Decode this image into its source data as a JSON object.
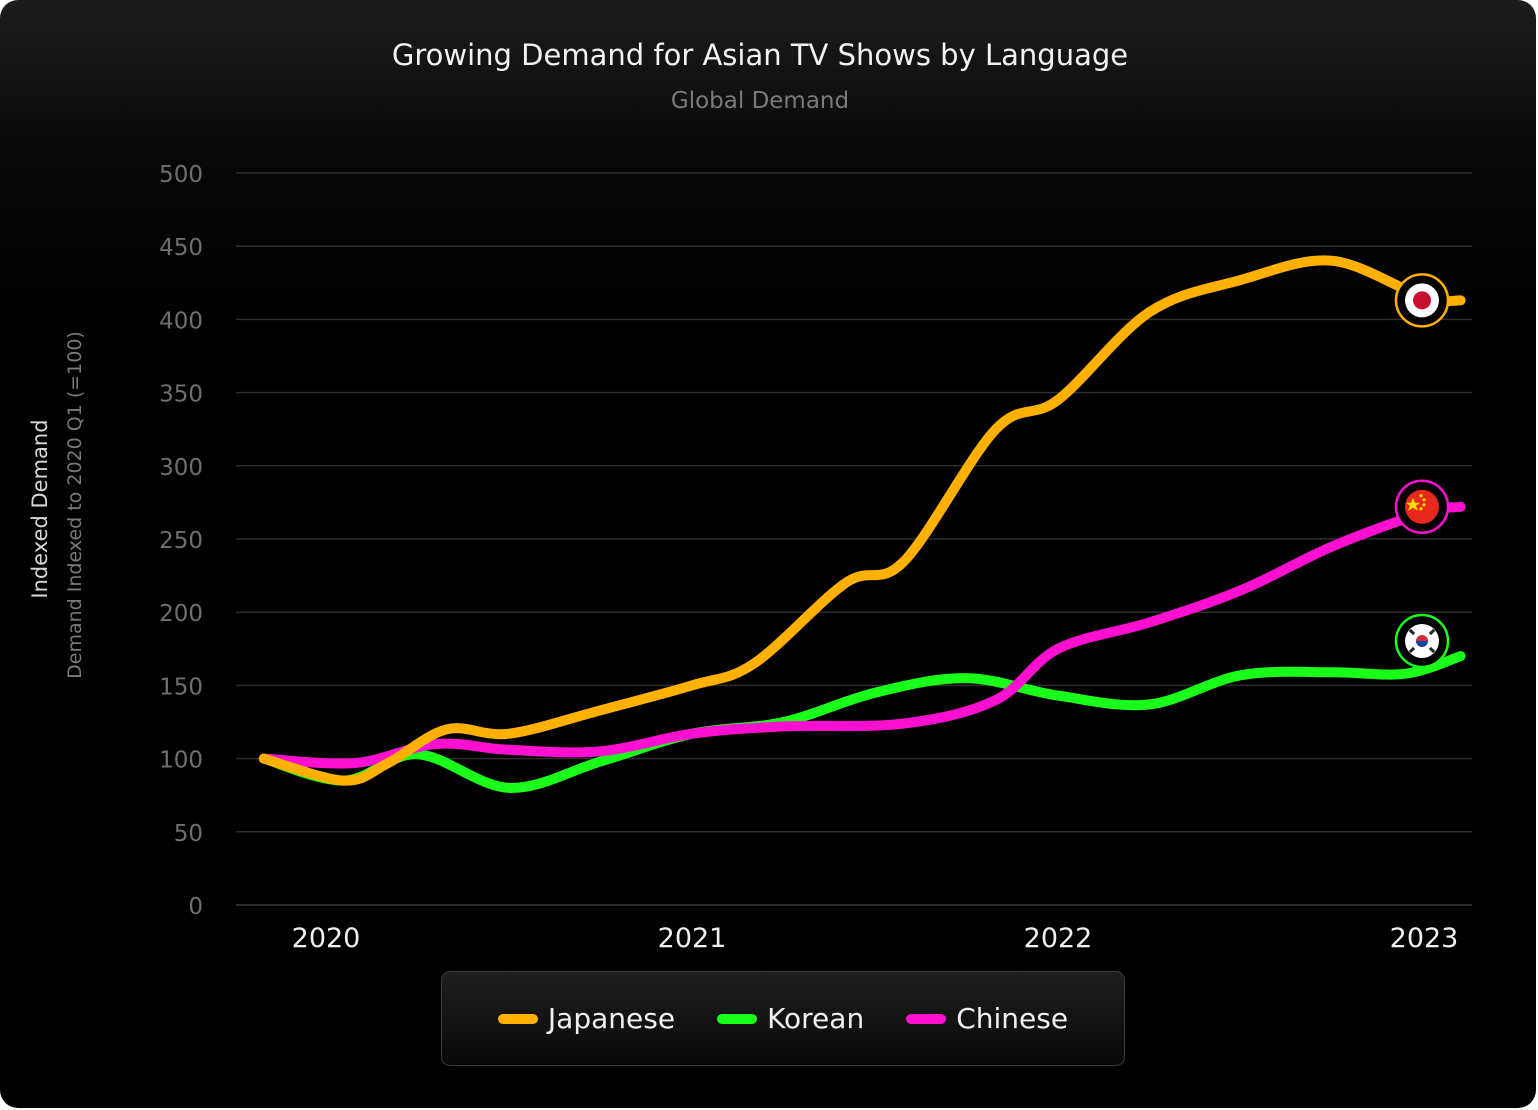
{
  "chart_data": {
    "type": "line",
    "title": "Growing Demand for Asian TV Shows by Language",
    "subtitle": "Global Demand",
    "ylabel": "Indexed Demand",
    "ylabel_secondary": "Demand Indexed to  2020 Q1 (=100)",
    "xlabel": "",
    "ylim": [
      0,
      500
    ],
    "yticks": [
      0,
      50,
      100,
      150,
      200,
      250,
      300,
      350,
      400,
      450,
      500
    ],
    "xticks": [
      "2020",
      "2021",
      "2022",
      "2023"
    ],
    "grid": true,
    "legend_position": "bottom",
    "series": [
      {
        "name": "Japanese",
        "color": "#ffb000",
        "end_icon": "japan-flag-icon",
        "points": [
          {
            "x": 2019.83,
            "y": 100
          },
          {
            "x": 2020.05,
            "y": 85
          },
          {
            "x": 2020.17,
            "y": 97
          },
          {
            "x": 2020.33,
            "y": 120
          },
          {
            "x": 2020.5,
            "y": 117
          },
          {
            "x": 2020.75,
            "y": 133
          },
          {
            "x": 2021.0,
            "y": 150
          },
          {
            "x": 2021.17,
            "y": 165
          },
          {
            "x": 2021.42,
            "y": 220
          },
          {
            "x": 2021.58,
            "y": 235
          },
          {
            "x": 2021.83,
            "y": 325
          },
          {
            "x": 2022.0,
            "y": 345
          },
          {
            "x": 2022.25,
            "y": 405
          },
          {
            "x": 2022.5,
            "y": 427
          },
          {
            "x": 2022.75,
            "y": 440
          },
          {
            "x": 2023.0,
            "y": 415
          },
          {
            "x": 2023.1,
            "y": 413
          }
        ]
      },
      {
        "name": "Korean",
        "color": "#19ff19",
        "end_icon": "south-korea-flag-icon",
        "points": [
          {
            "x": 2019.83,
            "y": 100
          },
          {
            "x": 2020.05,
            "y": 85
          },
          {
            "x": 2020.25,
            "y": 103
          },
          {
            "x": 2020.5,
            "y": 80
          },
          {
            "x": 2020.75,
            "y": 98
          },
          {
            "x": 2021.0,
            "y": 117
          },
          {
            "x": 2021.25,
            "y": 125
          },
          {
            "x": 2021.5,
            "y": 145
          },
          {
            "x": 2021.75,
            "y": 155
          },
          {
            "x": 2022.0,
            "y": 143
          },
          {
            "x": 2022.25,
            "y": 137
          },
          {
            "x": 2022.5,
            "y": 157
          },
          {
            "x": 2022.75,
            "y": 159
          },
          {
            "x": 2022.95,
            "y": 158
          },
          {
            "x": 2023.1,
            "y": 170
          }
        ]
      },
      {
        "name": "Chinese",
        "color": "#ff10d0",
        "end_icon": "china-flag-icon",
        "points": [
          {
            "x": 2019.83,
            "y": 100
          },
          {
            "x": 2020.08,
            "y": 97
          },
          {
            "x": 2020.3,
            "y": 110
          },
          {
            "x": 2020.5,
            "y": 106
          },
          {
            "x": 2020.75,
            "y": 105
          },
          {
            "x": 2021.0,
            "y": 117
          },
          {
            "x": 2021.25,
            "y": 122
          },
          {
            "x": 2021.58,
            "y": 124
          },
          {
            "x": 2021.83,
            "y": 140
          },
          {
            "x": 2022.0,
            "y": 175
          },
          {
            "x": 2022.25,
            "y": 193
          },
          {
            "x": 2022.5,
            "y": 215
          },
          {
            "x": 2022.75,
            "y": 245
          },
          {
            "x": 2023.0,
            "y": 268
          },
          {
            "x": 2023.1,
            "y": 272
          }
        ]
      }
    ]
  }
}
